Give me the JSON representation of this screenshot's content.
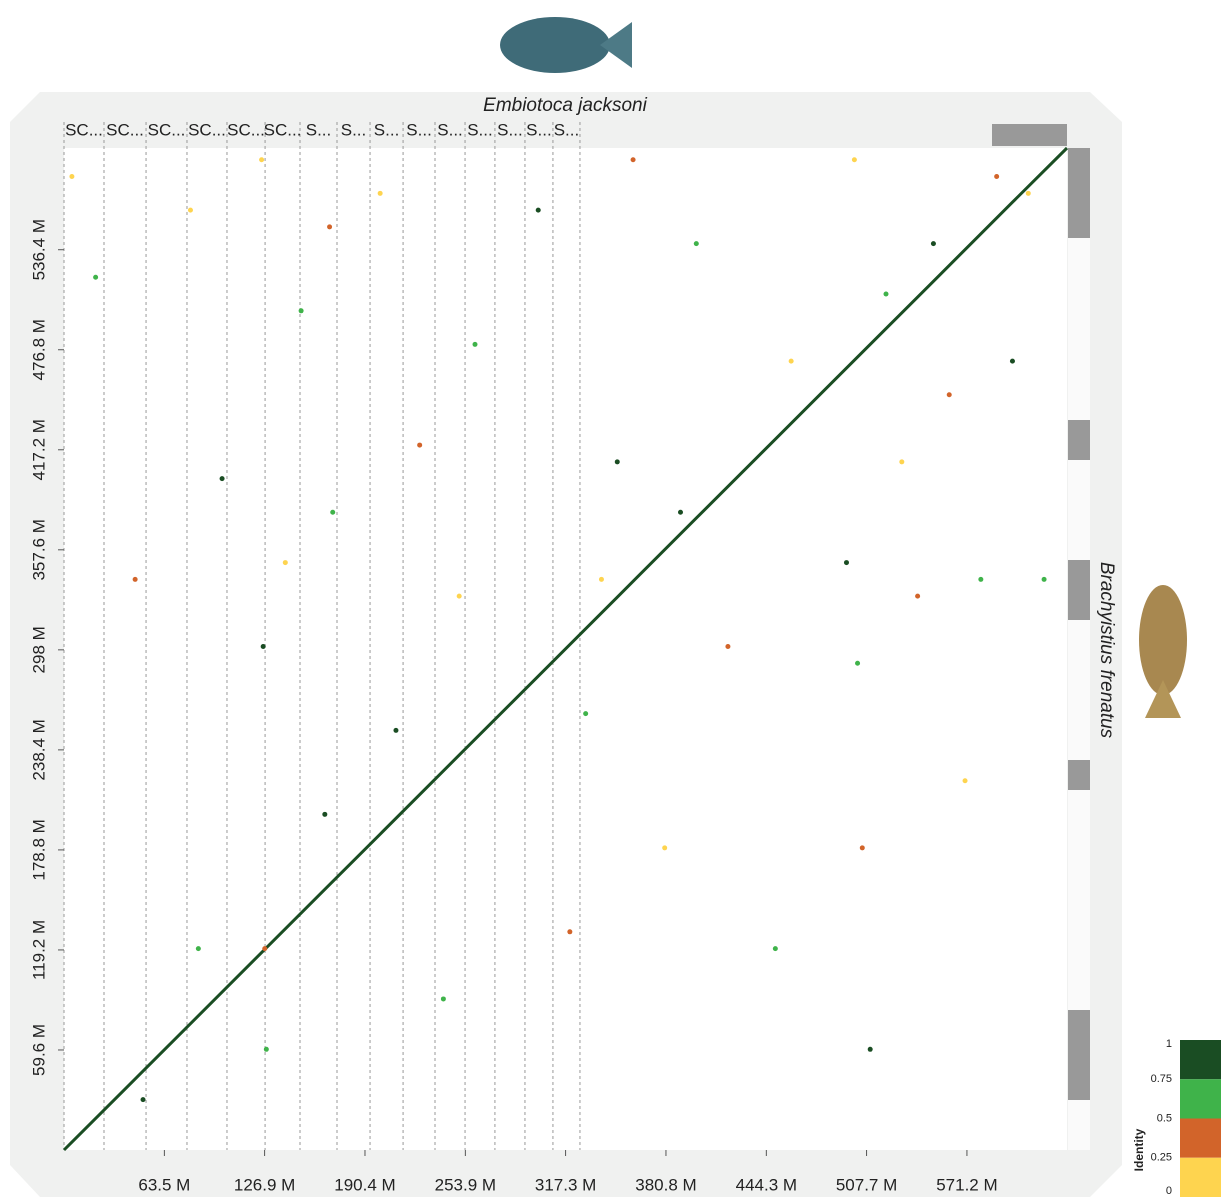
{
  "chart_data": {
    "type": "scatter",
    "title": "Embiotoca jacksoni",
    "y_title": "Brachyistius frenatus",
    "xlim": [
      0,
      634.5
    ],
    "ylim": [
      0,
      597
    ],
    "xticks": [
      {
        "value": 63.5,
        "label": "63.5 M"
      },
      {
        "value": 126.9,
        "label": "126.9 M"
      },
      {
        "value": 190.4,
        "label": "190.4 M"
      },
      {
        "value": 253.9,
        "label": "253.9 M"
      },
      {
        "value": 317.3,
        "label": "317.3 M"
      },
      {
        "value": 380.8,
        "label": "380.8 M"
      },
      {
        "value": 444.3,
        "label": "444.3 M"
      },
      {
        "value": 507.7,
        "label": "507.7 M"
      },
      {
        "value": 571.2,
        "label": "571.2 M"
      }
    ],
    "yticks": [
      {
        "value": 59.6,
        "label": "59.6 M"
      },
      {
        "value": 119.2,
        "label": "119.2 M"
      },
      {
        "value": 178.8,
        "label": "178.8 M"
      },
      {
        "value": 238.4,
        "label": "238.4 M"
      },
      {
        "value": 298,
        "label": "298 M"
      },
      {
        "value": 357.6,
        "label": "357.6 M"
      },
      {
        "value": 417.2,
        "label": "417.2 M"
      },
      {
        "value": 476.8,
        "label": "476.8 M"
      },
      {
        "value": 536.4,
        "label": "536.4 M"
      }
    ],
    "x_scaffolds": {
      "labels": [
        "SC...",
        "SC...",
        "SC...",
        "SC...",
        "SC...",
        "SC...",
        "S...",
        "S...",
        "S...",
        "S...",
        "S...",
        "S...",
        "S...",
        "S...",
        "S..."
      ],
      "bounds": [
        0,
        25.3,
        51.9,
        77.8,
        103.1,
        127.2,
        149.3,
        172.7,
        193.6,
        214.5,
        234.7,
        253.7,
        272.6,
        291.6,
        309.3,
        326.4
      ]
    },
    "series": [
      {
        "style": "line",
        "color": "#1a4d23",
        "x": [
          0,
          50,
          100,
          150,
          200,
          250,
          300,
          350,
          400,
          450,
          500,
          550,
          600,
          634.5
        ],
        "y": [
          0,
          47,
          94.1,
          141.2,
          188.2,
          235.3,
          282.3,
          329.4,
          376.5,
          423.5,
          470.6,
          517.6,
          564.7,
          597
        ]
      },
      {
        "style": "points",
        "x": [
          5,
          20,
          45,
          50,
          80,
          85,
          100,
          125,
          126,
          127,
          128,
          140,
          150,
          165,
          168,
          170,
          200,
          210,
          225,
          240,
          250,
          260,
          300,
          320,
          330,
          340,
          350,
          360,
          380,
          390,
          400,
          420,
          450,
          460,
          495,
          500,
          502,
          505,
          510,
          520,
          530,
          540,
          550,
          560,
          570,
          580,
          590,
          600,
          610,
          620
        ],
        "y": [
          580,
          520,
          340,
          30,
          560,
          120,
          400,
          590,
          300,
          120,
          60,
          350,
          500,
          200,
          550,
          380,
          570,
          250,
          420,
          90,
          330,
          480,
          560,
          130,
          260,
          340,
          410,
          590,
          180,
          380,
          540,
          300,
          120,
          470,
          350,
          590,
          290,
          180,
          60,
          510,
          410,
          330,
          540,
          450,
          220,
          340,
          580,
          470,
          570,
          340
        ],
        "identity": [
          0.1,
          0.6,
          0.3,
          0.9,
          0.2,
          0.55,
          0.8,
          0.15,
          0.9,
          0.35,
          0.7,
          0.1,
          0.6,
          0.85,
          0.3,
          0.65,
          0.2,
          0.9,
          0.4,
          0.55,
          0.1,
          0.7,
          0.95,
          0.3,
          0.6,
          0.2,
          0.8,
          0.45,
          0.15,
          0.9,
          0.6,
          0.3,
          0.7,
          0.2,
          0.85,
          0.1,
          0.55,
          0.4,
          0.9,
          0.65,
          0.2,
          0.3,
          0.8,
          0.5,
          0.15,
          0.7,
          0.35,
          0.9,
          0.25,
          0.6
        ]
      }
    ],
    "colorbar": {
      "title": "Identity",
      "ticks": [
        1,
        0.75,
        0.5,
        0.25,
        0
      ],
      "colors": [
        "#1a4d23",
        "#3fb34a",
        "#d2642a",
        "#fed44f"
      ]
    }
  }
}
